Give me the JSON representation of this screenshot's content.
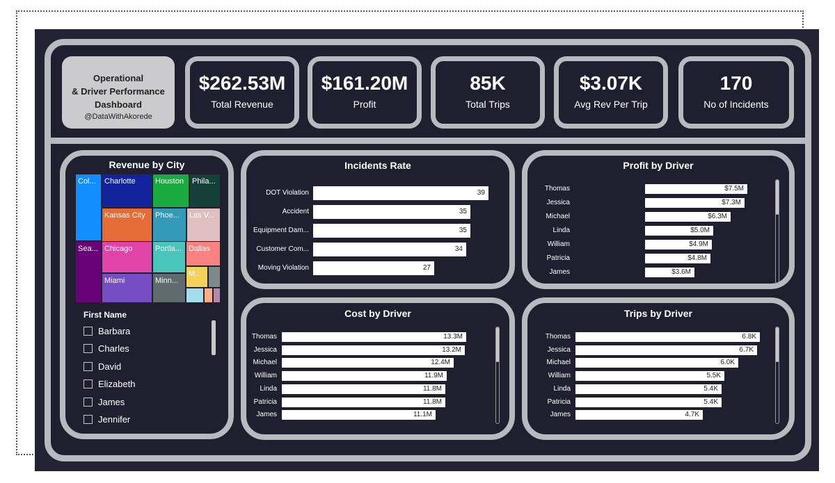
{
  "header": {
    "title_line1": "Operational",
    "title_line2": "& Driver Performance",
    "title_line3": "Dashboard",
    "handle": "@DataWithAkorede"
  },
  "kpis": [
    {
      "value": "$262.53M",
      "label": "Total Revenue"
    },
    {
      "value": "$161.20M",
      "label": "Profit"
    },
    {
      "value": "85K",
      "label": "Total Trips"
    },
    {
      "value": "$3.07K",
      "label": "Avg Rev Per Trip"
    },
    {
      "value": "170",
      "label": "No of Incidents"
    }
  ],
  "revenue_by_city": {
    "title": "Revenue by City",
    "tiles": [
      {
        "label": "Col...",
        "color": "#118dff"
      },
      {
        "label": "Charlotte",
        "color": "#12239e"
      },
      {
        "label": "Houston",
        "color": "#1aab40"
      },
      {
        "label": "Phila...",
        "color": "#15403a"
      },
      {
        "label": "Kansas City",
        "color": "#e66c37"
      },
      {
        "label": "Phoe...",
        "color": "#3599b8"
      },
      {
        "label": "Las V...",
        "color": "#dfbfbf"
      },
      {
        "label": "Sea...",
        "color": "#6b007b"
      },
      {
        "label": "Chicago",
        "color": "#e044a7"
      },
      {
        "label": "Portla...",
        "color": "#4ac5bb"
      },
      {
        "label": "Dallas",
        "color": "#fb8281"
      },
      {
        "label": "Miami",
        "color": "#744ec2"
      },
      {
        "label": "Minn...",
        "color": "#5f6b6d"
      },
      {
        "label": "M...",
        "color": "#f4d25a"
      },
      {
        "label": "",
        "color": "#7f898a"
      },
      {
        "label": "",
        "color": "#a4ddee"
      },
      {
        "label": "",
        "color": "#fdab89"
      },
      {
        "label": "",
        "color": "#b687ac"
      }
    ]
  },
  "slicer": {
    "title": "First Name",
    "items": [
      "Barbara",
      "Charles",
      "David",
      "Elizabeth",
      "James",
      "Jennifer"
    ]
  },
  "chart_data": [
    {
      "type": "bar",
      "title": "Incidents Rate",
      "categories": [
        "DOT Violation",
        "Accident",
        "Equipment Dam...",
        "Customer Com...",
        "Moving Violation"
      ],
      "values": [
        39,
        35,
        35,
        34,
        27
      ],
      "labels": [
        "39",
        "35",
        "35",
        "34",
        "27"
      ],
      "orientation": "horizontal"
    },
    {
      "type": "bar",
      "title": "Profit by Driver",
      "categories": [
        "Thomas",
        "Jessica",
        "Michael",
        "Linda",
        "William",
        "Patricia",
        "James"
      ],
      "values": [
        7.5,
        7.3,
        6.3,
        5.0,
        4.9,
        4.8,
        3.6
      ],
      "labels": [
        "$7.5M",
        "$7.3M",
        "$6.3M",
        "$5.0M",
        "$4.9M",
        "$4.8M",
        "$3.6M"
      ],
      "orientation": "horizontal"
    },
    {
      "type": "bar",
      "title": "Cost by Driver",
      "categories": [
        "Thomas",
        "Jessica",
        "Michael",
        "William",
        "Linda",
        "Patricia",
        "James"
      ],
      "values": [
        13.3,
        13.2,
        12.4,
        11.9,
        11.8,
        11.8,
        11.1
      ],
      "labels": [
        "13.3M",
        "13.2M",
        "12.4M",
        "11.9M",
        "11.8M",
        "11.8M",
        "11.1M"
      ],
      "orientation": "horizontal"
    },
    {
      "type": "bar",
      "title": "Trips by Driver",
      "categories": [
        "Thomas",
        "Jessica",
        "Michael",
        "William",
        "Linda",
        "Patricia",
        "James"
      ],
      "values": [
        6.8,
        6.7,
        6.0,
        5.5,
        5.4,
        5.4,
        4.7
      ],
      "labels": [
        "6.8K",
        "6.7K",
        "6.0K",
        "5.5K",
        "5.4K",
        "5.4K",
        "4.7K"
      ],
      "orientation": "horizontal"
    }
  ]
}
